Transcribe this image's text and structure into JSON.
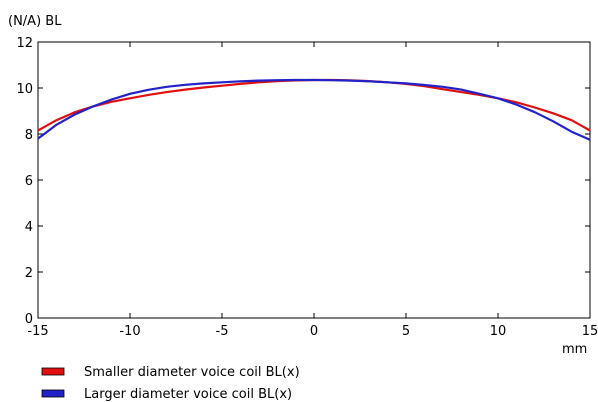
{
  "chart_data": {
    "type": "line",
    "title": "",
    "y_unit_label": "(N/A)  BL",
    "xlabel": "mm",
    "xlim": [
      -15,
      15
    ],
    "ylim": [
      0,
      12
    ],
    "x_ticks": [
      -15,
      -10,
      -5,
      0,
      5,
      10,
      15
    ],
    "y_ticks": [
      0,
      2,
      4,
      6,
      8,
      10,
      12
    ],
    "grid": false,
    "legend_position": "bottom-left",
    "series": [
      {
        "name": "Smaller diameter voice coil BL(x)",
        "color": "#e01010",
        "x": [
          -15,
          -14,
          -13,
          -12,
          -11,
          -10,
          -9,
          -8,
          -7,
          -6,
          -5,
          -4,
          -3,
          -2,
          -1,
          0,
          1,
          2,
          3,
          4,
          5,
          6,
          7,
          8,
          9,
          10,
          11,
          12,
          13,
          14,
          15
        ],
        "y": [
          8.15,
          8.6,
          8.95,
          9.2,
          9.4,
          9.55,
          9.7,
          9.82,
          9.93,
          10.02,
          10.1,
          10.18,
          10.25,
          10.3,
          10.33,
          10.35,
          10.35,
          10.33,
          10.3,
          10.25,
          10.18,
          10.08,
          9.95,
          9.82,
          9.7,
          9.55,
          9.38,
          9.15,
          8.9,
          8.6,
          8.15
        ]
      },
      {
        "name": "Larger diameter voice coil BL(x)",
        "color": "#2222c8",
        "x": [
          -15,
          -14,
          -13,
          -12,
          -11,
          -10,
          -9,
          -8,
          -7,
          -6,
          -5,
          -4,
          -3,
          -2,
          -1,
          0,
          1,
          2,
          3,
          4,
          5,
          6,
          7,
          8,
          9,
          10,
          11,
          12,
          13,
          14,
          15
        ],
        "y": [
          7.8,
          8.4,
          8.85,
          9.2,
          9.5,
          9.75,
          9.92,
          10.05,
          10.14,
          10.2,
          10.25,
          10.29,
          10.32,
          10.34,
          10.35,
          10.35,
          10.34,
          10.32,
          10.29,
          10.25,
          10.2,
          10.13,
          10.05,
          9.93,
          9.75,
          9.55,
          9.28,
          8.95,
          8.55,
          8.1,
          7.75
        ]
      }
    ]
  }
}
